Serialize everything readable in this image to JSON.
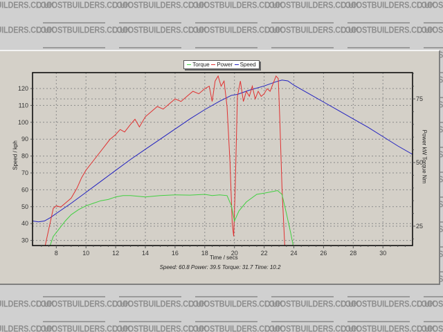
{
  "watermark": {
    "text": "LOCOSTBUILDERS.CO.UK"
  },
  "legend": [
    {
      "label": "Torque",
      "color": "#40d040"
    },
    {
      "label": "Power",
      "color": "#e03030"
    },
    {
      "label": "Speed",
      "color": "#2020c0"
    }
  ],
  "axes": {
    "x_title": "Time / secs",
    "y_left_title": "Speed / kph",
    "y_right_title": "Power kW Torque Nm"
  },
  "status": {
    "text": "Speed: 60.8  Power: 39.5 Torque: 31.7 Time: 10.2"
  },
  "chart_data": {
    "type": "line",
    "title": "",
    "xlabel": "Time / secs",
    "ylabel": "Speed / kph",
    "y2label": "Power kW Torque Nm",
    "xlim": [
      6.4,
      32
    ],
    "ylim": [
      26,
      129
    ],
    "y2lim": [
      17,
      85
    ],
    "x_ticks": [
      8,
      10,
      12,
      14,
      16,
      18,
      20,
      22,
      24,
      26,
      28,
      30
    ],
    "y_ticks": [
      30,
      40,
      50,
      60,
      70,
      80,
      90,
      100,
      110,
      120
    ],
    "y2_ticks": [
      25,
      50,
      75
    ],
    "grid": true,
    "legend_position": "top-center",
    "series": [
      {
        "name": "Speed",
        "axis": "left",
        "color": "#2020c0",
        "x": [
          6.4,
          6.8,
          7.2,
          7.6,
          8.0,
          9.0,
          10.0,
          11.0,
          12.0,
          13.0,
          14.0,
          15.0,
          16.0,
          17.0,
          18.0,
          19.0,
          19.8,
          20.2,
          21.0,
          22.0,
          22.8,
          23.2,
          23.6,
          24.0,
          25.0,
          26.0,
          27.0,
          28.0,
          29.0,
          30.0,
          31.0,
          32.0
        ],
        "y": [
          41.5,
          41,
          41.5,
          43.5,
          46,
          52,
          58.5,
          65,
          71.5,
          78,
          84,
          90,
          96,
          102,
          107.5,
          112.5,
          116,
          116.5,
          119,
          121.5,
          124,
          125,
          124.5,
          122,
          117,
          112,
          107,
          102,
          97,
          91.5,
          86,
          81
        ]
      },
      {
        "name": "Power",
        "axis": "right",
        "color": "#e03030",
        "x": [
          7.2,
          7.5,
          7.8,
          8.0,
          8.3,
          8.6,
          9.0,
          9.4,
          9.7,
          10.0,
          10.4,
          10.8,
          11.2,
          11.6,
          12.0,
          12.3,
          12.6,
          13.0,
          13.3,
          13.6,
          14.0,
          14.4,
          14.8,
          15.2,
          15.6,
          16.0,
          16.4,
          16.8,
          17.2,
          17.6,
          18.0,
          18.3,
          18.5,
          18.7,
          18.9,
          19.1,
          19.3,
          19.5,
          19.7,
          19.85,
          19.95,
          20.05,
          20.2,
          20.4,
          20.6,
          20.8,
          21.0,
          21.2,
          21.4,
          21.6,
          21.8,
          22.0,
          22.2,
          22.4,
          22.6,
          22.8,
          22.95,
          23.05,
          23.2,
          23.4,
          23.6
        ],
        "y": [
          16,
          24,
          32,
          33,
          32.5,
          34,
          36,
          40,
          44,
          47,
          50,
          53,
          56,
          59,
          61,
          63,
          62,
          65,
          67,
          64,
          68,
          70,
          72,
          71,
          73,
          75,
          74,
          76,
          78,
          77,
          79,
          80,
          74,
          82,
          84,
          80,
          82,
          72,
          50,
          26,
          21,
          40,
          76,
          82,
          74,
          78,
          76,
          80,
          75,
          78,
          76,
          77,
          79,
          78,
          81,
          84,
          83,
          68,
          40,
          16,
          10
        ]
      },
      {
        "name": "Torque",
        "axis": "right",
        "color": "#40d040",
        "x": [
          7.5,
          7.8,
          8.2,
          8.6,
          9.0,
          9.5,
          10.0,
          10.5,
          11.0,
          11.5,
          12.0,
          12.5,
          13.0,
          14.0,
          15.0,
          16.0,
          17.0,
          18.0,
          18.5,
          19.0,
          19.5,
          19.8,
          20.0,
          20.3,
          20.8,
          21.5,
          22.0,
          22.5,
          22.9,
          23.2,
          23.5,
          23.8,
          24.0
        ],
        "y": [
          16,
          21,
          24,
          27,
          29.5,
          31.5,
          33,
          34,
          35,
          35.5,
          36.5,
          37,
          37,
          36.5,
          37,
          37.3,
          37.2,
          37.5,
          37,
          37.3,
          37,
          33,
          27,
          31,
          34.5,
          37.5,
          38,
          38.5,
          39,
          37.5,
          30,
          22,
          16
        ]
      }
    ]
  }
}
